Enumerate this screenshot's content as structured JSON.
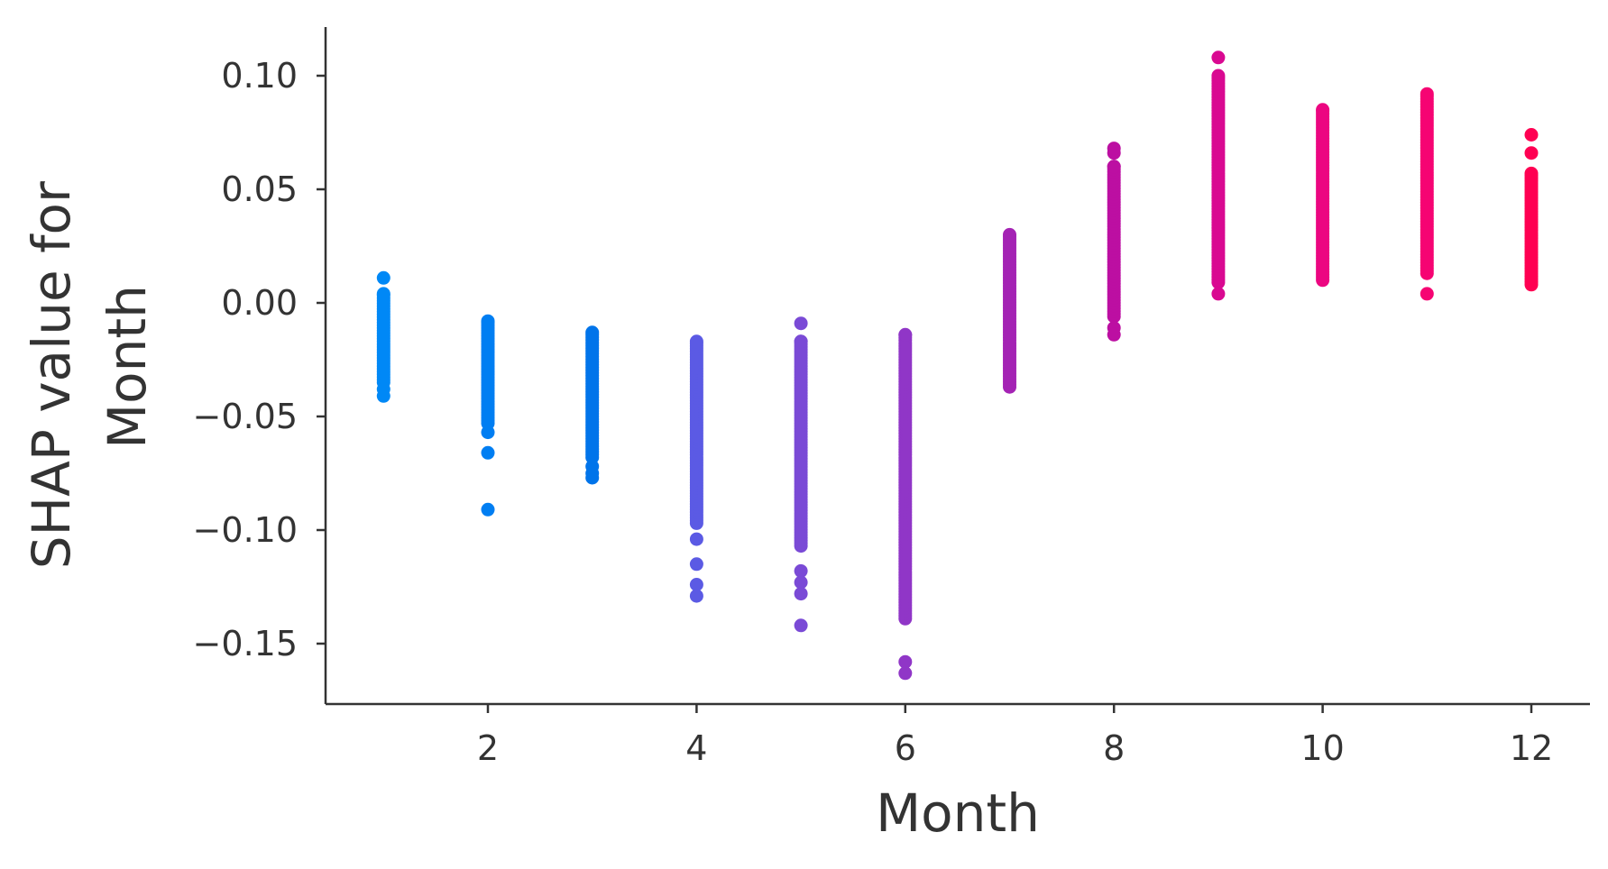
{
  "chart_data": {
    "type": "scatter",
    "title": "",
    "xlabel": "Month",
    "ylabel_lines": [
      "SHAP value for",
      "Month"
    ],
    "xlim": [
      0.5,
      12.55
    ],
    "ylim": [
      -0.177,
      0.122
    ],
    "x_ticks": [
      2,
      4,
      6,
      8,
      10,
      12
    ],
    "y_ticks": [
      0.1,
      0.05,
      0.0,
      -0.05,
      -0.1,
      -0.15
    ],
    "y_tick_labels": [
      "0.10",
      "0.05",
      "0.00",
      "−0.05",
      "−0.10",
      "−0.15"
    ],
    "grid": false,
    "legend": "none",
    "color_low": "#008afb",
    "color_high": "#ff0052",
    "series": [
      {
        "x": 1,
        "color": "#0088f6",
        "range": [
          -0.035,
          0.004
        ],
        "points": [
          0.011,
          -0.038,
          -0.041
        ]
      },
      {
        "x": 2,
        "color": "#007ef2",
        "range": [
          -0.053,
          -0.008
        ],
        "points": [
          -0.057,
          -0.066,
          -0.091
        ]
      },
      {
        "x": 3,
        "color": "#0074ea",
        "range": [
          -0.068,
          -0.013
        ],
        "points": [
          -0.072,
          -0.075,
          -0.077
        ]
      },
      {
        "x": 4,
        "color": "#5b5ae4",
        "range": [
          -0.097,
          -0.017
        ],
        "points": [
          -0.104,
          -0.115,
          -0.124,
          -0.129
        ]
      },
      {
        "x": 5,
        "color": "#7a4ad6",
        "range": [
          -0.107,
          -0.017
        ],
        "points": [
          -0.009,
          -0.118,
          -0.123,
          -0.128,
          -0.142
        ]
      },
      {
        "x": 6,
        "color": "#9036c7",
        "range": [
          -0.139,
          -0.014
        ],
        "points": [
          -0.158,
          -0.163
        ]
      },
      {
        "x": 7,
        "color": "#a423b4",
        "range": [
          -0.037,
          0.03
        ],
        "points": []
      },
      {
        "x": 8,
        "color": "#bc0fa2",
        "range": [
          -0.006,
          0.06
        ],
        "points": [
          -0.011,
          -0.014,
          0.066,
          0.068
        ]
      },
      {
        "x": 9,
        "color": "#d90991",
        "range": [
          0.009,
          0.1
        ],
        "points": [
          0.004,
          0.108
        ]
      },
      {
        "x": 10,
        "color": "#ec0681",
        "range": [
          0.01,
          0.085
        ],
        "points": []
      },
      {
        "x": 11,
        "color": "#f60473",
        "range": [
          0.013,
          0.092
        ],
        "points": [
          0.004
        ]
      },
      {
        "x": 12,
        "color": "#ff0052",
        "range": [
          0.008,
          0.057
        ],
        "points": [
          0.066,
          0.074
        ]
      }
    ]
  }
}
